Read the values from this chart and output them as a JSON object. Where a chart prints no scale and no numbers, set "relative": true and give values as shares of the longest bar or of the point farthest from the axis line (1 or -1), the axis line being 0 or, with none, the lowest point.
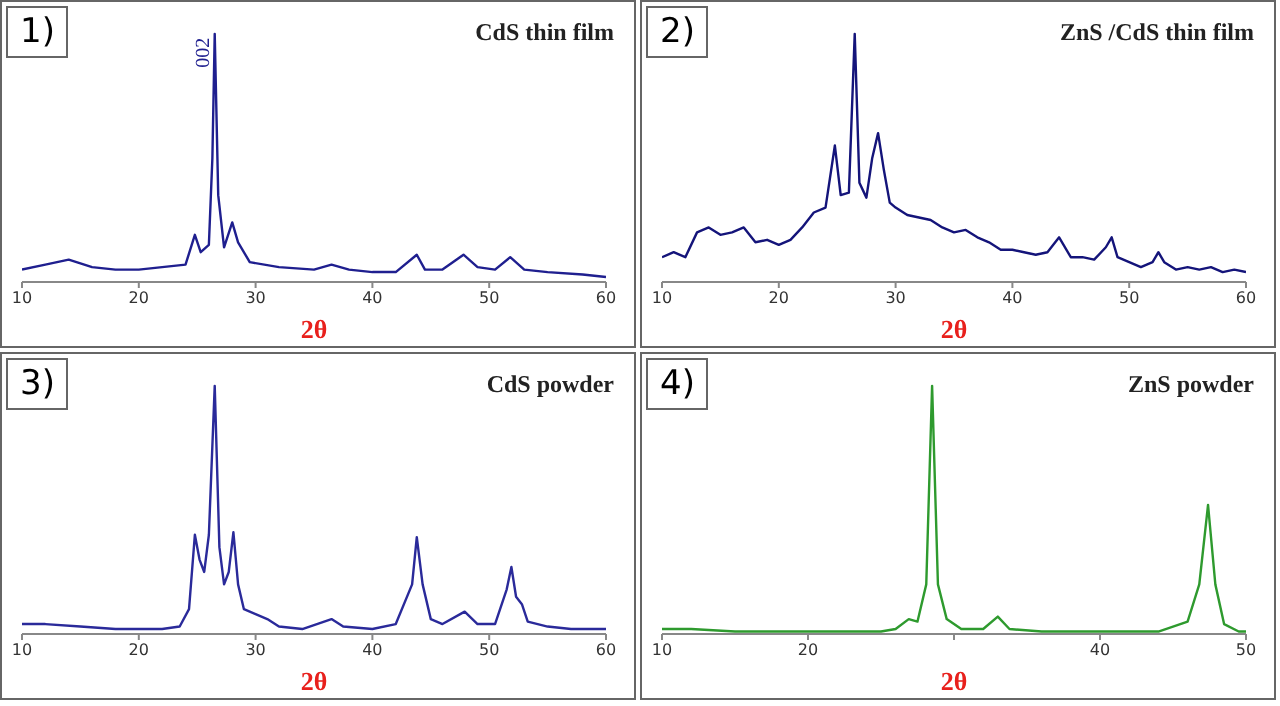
{
  "chart_data": [
    {
      "type": "line",
      "title": "CdS thin film",
      "xlabel": "2θ",
      "relative": true,
      "xlim": [
        10,
        60
      ],
      "xticks": [
        10,
        20,
        30,
        40,
        50,
        60
      ],
      "grid": false,
      "legend": false,
      "marker": "none",
      "annotations": [
        "1)",
        {
          "text": "002",
          "x": 26.5,
          "y": 1
        }
      ],
      "x": [
        10,
        12,
        14,
        16,
        18,
        20,
        22,
        24,
        24.8,
        25.3,
        26,
        26.3,
        26.5,
        26.8,
        27.3,
        28,
        28.5,
        29.5,
        32,
        35,
        36.5,
        38,
        40,
        42,
        43.8,
        44.5,
        46,
        47.8,
        49,
        50.5,
        51.8,
        53,
        55,
        58,
        60
      ],
      "series": [
        {
          "color": "#1f1f8f",
          "values": [
            0.05,
            0.07,
            0.09,
            0.06,
            0.05,
            0.05,
            0.06,
            0.07,
            0.19,
            0.12,
            0.15,
            0.5,
            1.0,
            0.35,
            0.14,
            0.24,
            0.16,
            0.08,
            0.06,
            0.05,
            0.07,
            0.05,
            0.04,
            0.04,
            0.11,
            0.05,
            0.05,
            0.11,
            0.06,
            0.05,
            0.1,
            0.05,
            0.04,
            0.03,
            0.02
          ]
        }
      ]
    },
    {
      "type": "line",
      "title": "ZnS /CdS thin film",
      "xlabel": "2θ",
      "relative": true,
      "xlim": [
        10,
        60
      ],
      "xticks": [
        10,
        20,
        30,
        40,
        50,
        60
      ],
      "grid": false,
      "legend": false,
      "marker": "none",
      "annotations": [
        "2)"
      ],
      "x": [
        10,
        11,
        12,
        13,
        14,
        15,
        16,
        17,
        18,
        19,
        20,
        21,
        22,
        23,
        24,
        24.8,
        25.3,
        26,
        26.5,
        26.9,
        27.5,
        28,
        28.5,
        29,
        29.5,
        30,
        31,
        32,
        33,
        34,
        35,
        36,
        37,
        38,
        39,
        40,
        41,
        42,
        43,
        44,
        45,
        46,
        47,
        48,
        48.5,
        49,
        50,
        51,
        52,
        52.5,
        53,
        54,
        55,
        56,
        57,
        58,
        59,
        60
      ],
      "series": [
        {
          "color": "#14147a",
          "values": [
            0.1,
            0.12,
            0.1,
            0.2,
            0.22,
            0.19,
            0.2,
            0.22,
            0.16,
            0.17,
            0.15,
            0.17,
            0.22,
            0.28,
            0.3,
            0.55,
            0.35,
            0.36,
            1.0,
            0.4,
            0.34,
            0.5,
            0.6,
            0.45,
            0.32,
            0.3,
            0.27,
            0.26,
            0.25,
            0.22,
            0.2,
            0.21,
            0.18,
            0.16,
            0.13,
            0.13,
            0.12,
            0.11,
            0.12,
            0.18,
            0.1,
            0.1,
            0.09,
            0.14,
            0.18,
            0.1,
            0.08,
            0.06,
            0.08,
            0.12,
            0.08,
            0.05,
            0.06,
            0.05,
            0.06,
            0.04,
            0.05,
            0.04
          ]
        }
      ]
    },
    {
      "type": "line",
      "title": "CdS powder",
      "xlabel": "2θ",
      "relative": true,
      "xlim": [
        10,
        60
      ],
      "xticks": [
        10,
        20,
        30,
        40,
        50,
        60
      ],
      "grid": false,
      "legend": false,
      "marker": "none",
      "annotations": [
        "3)"
      ],
      "x": [
        10,
        12,
        15,
        18,
        20,
        22,
        23.5,
        24.3,
        24.8,
        25.2,
        25.6,
        26,
        26.5,
        26.9,
        27.3,
        27.7,
        28.1,
        28.5,
        29,
        30,
        31,
        32,
        34,
        36.5,
        37.5,
        40,
        42,
        43.4,
        43.8,
        44.3,
        45,
        46,
        47.9,
        49,
        50.5,
        51.5,
        51.9,
        52.3,
        52.8,
        53.3,
        55,
        57,
        60
      ],
      "series": [
        {
          "color": "#2a2a9a",
          "values": [
            0.04,
            0.04,
            0.03,
            0.02,
            0.02,
            0.02,
            0.03,
            0.1,
            0.4,
            0.3,
            0.25,
            0.4,
            1.0,
            0.35,
            0.2,
            0.25,
            0.41,
            0.2,
            0.1,
            0.08,
            0.06,
            0.03,
            0.02,
            0.06,
            0.03,
            0.02,
            0.04,
            0.2,
            0.39,
            0.2,
            0.06,
            0.04,
            0.09,
            0.04,
            0.04,
            0.18,
            0.27,
            0.15,
            0.12,
            0.05,
            0.03,
            0.02,
            0.02
          ]
        }
      ]
    },
    {
      "type": "line",
      "title": "ZnS powder",
      "xlabel": "2θ",
      "relative": true,
      "xlim": [
        10,
        50
      ],
      "xticks": [
        10,
        20,
        {
          "value": 30,
          "label": null
        },
        40,
        50
      ],
      "grid": false,
      "legend": false,
      "marker": "none",
      "annotations": [
        "4)"
      ],
      "x": [
        10,
        12,
        15,
        20,
        25,
        26,
        26.9,
        27.5,
        28.1,
        28.5,
        28.9,
        29.5,
        30.5,
        32,
        33,
        33.8,
        36,
        40,
        44,
        46,
        46.8,
        47.4,
        47.9,
        48.5,
        49.5,
        50
      ],
      "series": [
        {
          "color": "#2e9a2e",
          "values": [
            0.02,
            0.02,
            0.01,
            0.01,
            0.01,
            0.02,
            0.06,
            0.05,
            0.2,
            1.0,
            0.2,
            0.06,
            0.02,
            0.02,
            0.07,
            0.02,
            0.01,
            0.01,
            0.01,
            0.05,
            0.2,
            0.52,
            0.2,
            0.04,
            0.01,
            0.01
          ]
        }
      ]
    }
  ]
}
